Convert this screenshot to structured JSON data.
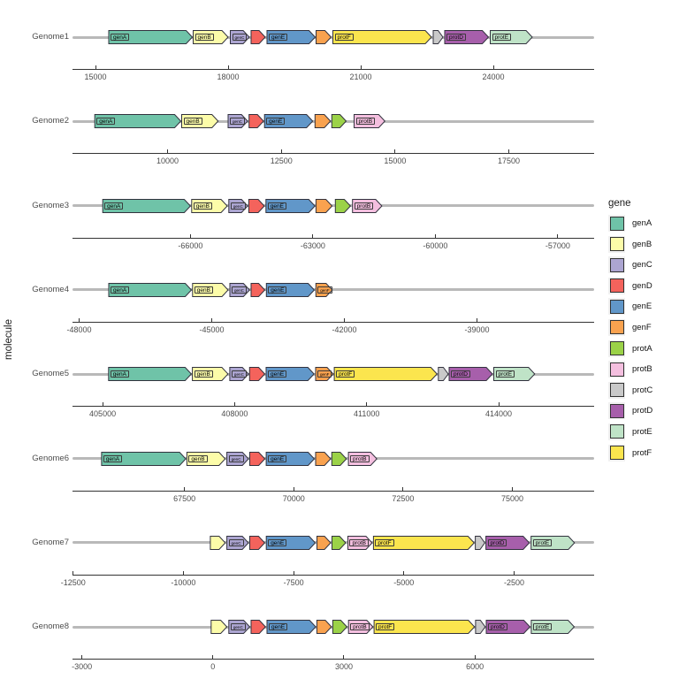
{
  "chart_data": {
    "type": "gene-arrow-map",
    "ylabel": "molecule",
    "legend_title": "gene",
    "legend_position": "right",
    "legend_items": [
      "genA",
      "genB",
      "genC",
      "genD",
      "genE",
      "genF",
      "protA",
      "protB",
      "protC",
      "protD",
      "protE",
      "protF"
    ],
    "palette": {
      "genA": "#6FC3A8",
      "genB": "#FCFCA9",
      "genC": "#ACA5D1",
      "genD": "#F4635C",
      "genE": "#6197C9",
      "genF": "#F9A24F",
      "protA": "#9BD248",
      "protB": "#F4BFDF",
      "protC": "#C9C9C9",
      "protD": "#A75FAB",
      "protE": "#BFE3C7",
      "protF": "#FBE54E"
    },
    "colors": {
      "molecule_line": "#b9b9b9",
      "axis_line": "#333333",
      "arrow_stroke": "#32323E",
      "tick_text": "#4d4d4d"
    },
    "genomes": [
      {
        "name": "Genome1",
        "xlim": [
          14480,
          26280
        ],
        "ticks": [
          "15000",
          "18000",
          "21000",
          "24000"
        ],
        "tick_values": [
          15000,
          18000,
          21000,
          24000
        ],
        "genes": [
          {
            "gene": "genA",
            "label": "genA",
            "start": 15300,
            "end": 17190
          },
          {
            "gene": "genB",
            "label": "genB",
            "start": 17210,
            "end": 18000
          },
          {
            "gene": "genC",
            "label": "genC",
            "start": 18050,
            "end": 18480
          },
          {
            "gene": "genD",
            "label": "",
            "start": 18520,
            "end": 18840
          },
          {
            "gene": "genE",
            "label": "genE",
            "start": 18880,
            "end": 19970
          },
          {
            "gene": "genF",
            "label": "",
            "start": 19990,
            "end": 20330
          },
          {
            "gene": "protF",
            "label": "protF",
            "start": 20370,
            "end": 22600
          },
          {
            "gene": "protC",
            "label": "",
            "start": 22640,
            "end": 22860
          },
          {
            "gene": "protD",
            "label": "protD",
            "start": 22900,
            "end": 23890
          },
          {
            "gene": "protE",
            "label": "protE",
            "start": 23930,
            "end": 24880
          }
        ]
      },
      {
        "name": "Genome2",
        "xlim": [
          7910,
          19375
        ],
        "ticks": [
          "10000",
          "12500",
          "15000",
          "17500"
        ],
        "tick_values": [
          10000,
          12500,
          15000,
          17500
        ],
        "genes": [
          {
            "gene": "genA",
            "label": "genA",
            "start": 8400,
            "end": 10290
          },
          {
            "gene": "genB",
            "label": "genB",
            "start": 10310,
            "end": 11110
          },
          {
            "gene": "genC",
            "label": "genC",
            "start": 11330,
            "end": 11760
          },
          {
            "gene": "genD",
            "label": "",
            "start": 11790,
            "end": 12110
          },
          {
            "gene": "genE",
            "label": "genE",
            "start": 12130,
            "end": 13190
          },
          {
            "gene": "genF",
            "label": "",
            "start": 13240,
            "end": 13580
          },
          {
            "gene": "protA",
            "label": "",
            "start": 13610,
            "end": 13925
          },
          {
            "gene": "protB",
            "label": "protB",
            "start": 14100,
            "end": 14775
          }
        ]
      },
      {
        "name": "Genome3",
        "xlim": [
          -68890,
          -56110
        ],
        "ticks": [
          "-66000",
          "-63000",
          "-60000",
          "-57000"
        ],
        "tick_values": [
          -66000,
          -63000,
          -60000,
          -57000
        ],
        "genes": [
          {
            "gene": "genA",
            "label": "genA",
            "start": -68150,
            "end": -66000
          },
          {
            "gene": "genB",
            "label": "genB",
            "start": -65970,
            "end": -65100
          },
          {
            "gene": "genC",
            "label": "genC",
            "start": -65060,
            "end": -64600
          },
          {
            "gene": "genD",
            "label": "",
            "start": -64570,
            "end": -64190
          },
          {
            "gene": "genE",
            "label": "genE",
            "start": -64150,
            "end": -62950
          },
          {
            "gene": "genF",
            "label": "",
            "start": -62925,
            "end": -62530
          },
          {
            "gene": "protA",
            "label": "",
            "start": -62450,
            "end": -62080
          },
          {
            "gene": "protB",
            "label": "protB",
            "start": -62030,
            "end": -61310
          }
        ]
      },
      {
        "name": "Genome4",
        "xlim": [
          -48150,
          -36350
        ],
        "ticks": [
          "-48000",
          "-45000",
          "-42000",
          "-39000"
        ],
        "tick_values": [
          -48000,
          -45000,
          -42000,
          -39000
        ],
        "genes": [
          {
            "gene": "genA",
            "label": "genA",
            "start": -47330,
            "end": -45460
          },
          {
            "gene": "genB",
            "label": "genB",
            "start": -45435,
            "end": -44630
          },
          {
            "gene": "genC",
            "label": "genC",
            "start": -44590,
            "end": -44145
          },
          {
            "gene": "genD",
            "label": "",
            "start": -44110,
            "end": -43800
          },
          {
            "gene": "genE",
            "label": "genE",
            "start": -43765,
            "end": -42680
          },
          {
            "gene": "genF",
            "label": "genF",
            "start": -42645,
            "end": -42275
          }
        ]
      },
      {
        "name": "Genome5",
        "xlim": [
          404315,
          416170
        ],
        "ticks": [
          "405000",
          "408000",
          "411000",
          "414000"
        ],
        "tick_values": [
          405000,
          408000,
          411000,
          414000
        ],
        "genes": [
          {
            "gene": "genA",
            "label": "genA",
            "start": 405135,
            "end": 407015
          },
          {
            "gene": "genB",
            "label": "genB",
            "start": 407040,
            "end": 407850
          },
          {
            "gene": "genC",
            "label": "genC",
            "start": 407890,
            "end": 408315
          },
          {
            "gene": "genD",
            "label": "",
            "start": 408340,
            "end": 408685
          },
          {
            "gene": "genE",
            "label": "genE",
            "start": 408715,
            "end": 409805
          },
          {
            "gene": "genF",
            "label": "genF",
            "start": 409840,
            "end": 410240
          },
          {
            "gene": "protF",
            "label": "protF",
            "start": 410265,
            "end": 412600
          },
          {
            "gene": "protC",
            "label": "",
            "start": 412630,
            "end": 412855
          },
          {
            "gene": "protD",
            "label": "protD",
            "start": 412875,
            "end": 413860
          },
          {
            "gene": "protE",
            "label": "protE",
            "start": 413890,
            "end": 414820
          }
        ]
      },
      {
        "name": "Genome6",
        "xlim": [
          64940,
          76870
        ],
        "ticks": [
          "67500",
          "70000",
          "72500",
          "75000"
        ],
        "tick_values": [
          67500,
          70000,
          72500,
          75000
        ],
        "genes": [
          {
            "gene": "genA",
            "label": "genA",
            "start": 65605,
            "end": 67530
          },
          {
            "gene": "genB",
            "label": "genB",
            "start": 67557,
            "end": 68433
          },
          {
            "gene": "genC",
            "label": "genC",
            "start": 68470,
            "end": 68965
          },
          {
            "gene": "genD",
            "label": "",
            "start": 68995,
            "end": 69340
          },
          {
            "gene": "genE",
            "label": "genE",
            "start": 69370,
            "end": 70470
          },
          {
            "gene": "genF",
            "label": "",
            "start": 70500,
            "end": 70845
          },
          {
            "gene": "protA",
            "label": "",
            "start": 70870,
            "end": 71205
          },
          {
            "gene": "protB",
            "label": "protB",
            "start": 71250,
            "end": 71900
          }
        ]
      },
      {
        "name": "Genome7",
        "xlim": [
          -12515,
          -685
        ],
        "ticks": [
          "-12500",
          "-10000",
          "-7500",
          "-5000",
          "-2500"
        ],
        "tick_values": [
          -12500,
          -10000,
          -7500,
          -5000,
          -2500
        ],
        "genes": [
          {
            "gene": "genB",
            "label": "",
            "start": -9390,
            "end": -9050
          },
          {
            "gene": "genC",
            "label": "genC",
            "start": -9015,
            "end": -8525
          },
          {
            "gene": "genD",
            "label": "",
            "start": -8495,
            "end": -8155
          },
          {
            "gene": "genE",
            "label": "genE",
            "start": -8120,
            "end": -7010
          },
          {
            "gene": "genF",
            "label": "",
            "start": -6970,
            "end": -6660
          },
          {
            "gene": "protA",
            "label": "",
            "start": -6630,
            "end": -6320
          },
          {
            "gene": "protB",
            "label": "protB",
            "start": -6270,
            "end": -5720
          },
          {
            "gene": "protF",
            "label": "protF",
            "start": -5690,
            "end": -3405
          },
          {
            "gene": "protC",
            "label": "",
            "start": -3380,
            "end": -3165
          },
          {
            "gene": "protD",
            "label": "protD",
            "start": -3140,
            "end": -2155
          },
          {
            "gene": "protE",
            "label": "protE",
            "start": -2115,
            "end": -1130
          }
        ]
      },
      {
        "name": "Genome8",
        "xlim": [
          -3215,
          8730
        ],
        "ticks": [
          "-3000",
          "0",
          "3000",
          "6000"
        ],
        "tick_values": [
          -3000,
          0,
          3000,
          6000
        ],
        "genes": [
          {
            "gene": "genB",
            "label": "",
            "start": -40,
            "end": 320
          },
          {
            "gene": "genC",
            "label": "genC",
            "start": 365,
            "end": 845
          },
          {
            "gene": "genD",
            "label": "",
            "start": 875,
            "end": 1205
          },
          {
            "gene": "genE",
            "label": "genE",
            "start": 1240,
            "end": 2355
          },
          {
            "gene": "genF",
            "label": "",
            "start": 2380,
            "end": 2715
          },
          {
            "gene": "protA",
            "label": "",
            "start": 2745,
            "end": 3070
          },
          {
            "gene": "protB",
            "label": "protB",
            "start": 3105,
            "end": 3665
          },
          {
            "gene": "protF",
            "label": "protF",
            "start": 3690,
            "end": 5990
          },
          {
            "gene": "protC",
            "label": "",
            "start": 6015,
            "end": 6235
          },
          {
            "gene": "protD",
            "label": "protD",
            "start": 6260,
            "end": 7260
          },
          {
            "gene": "protE",
            "label": "protE",
            "start": 7290,
            "end": 8275
          }
        ]
      }
    ]
  }
}
